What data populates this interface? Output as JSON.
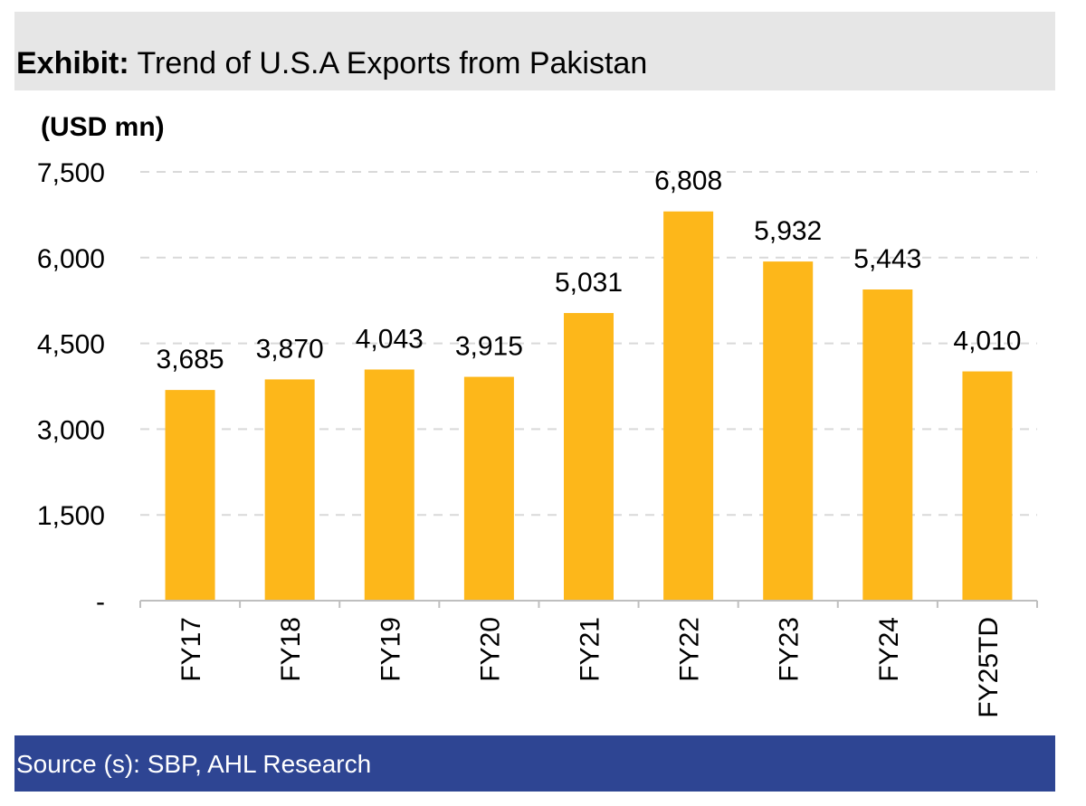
{
  "header": {
    "title_bold": "Exhibit:",
    "title_rest": "Trend of U.S.A Exports from Pakistan"
  },
  "colors": {
    "bar": "#FDB71A",
    "header_bg": "#e6e6e6",
    "footer_bg": "#2e4593",
    "grid": "#d9d9d9"
  },
  "chart_data": {
    "type": "bar",
    "title": "Trend of U.S.A Exports from Pakistan",
    "ylabel": "(USD mn)",
    "xlabel": "",
    "categories": [
      "FY17",
      "FY18",
      "FY19",
      "FY20",
      "FY21",
      "FY22",
      "FY23",
      "FY24",
      "FY25TD"
    ],
    "values": [
      3685,
      3870,
      4043,
      3915,
      5031,
      6808,
      5932,
      5443,
      4010
    ],
    "value_labels": [
      "3,685",
      "3,870",
      "4,043",
      "3,915",
      "5,031",
      "6,808",
      "5,932",
      "5,443",
      "4,010"
    ],
    "ylim": [
      0,
      7500
    ],
    "yticks": [
      0,
      1500,
      3000,
      4500,
      6000,
      7500
    ],
    "ytick_labels": [
      "-",
      "1,500",
      "3,000",
      "4,500",
      "6,000",
      "7,500"
    ],
    "grid": true,
    "legend": "none"
  },
  "footer": {
    "source": "Source (s): SBP, AHL Research"
  }
}
